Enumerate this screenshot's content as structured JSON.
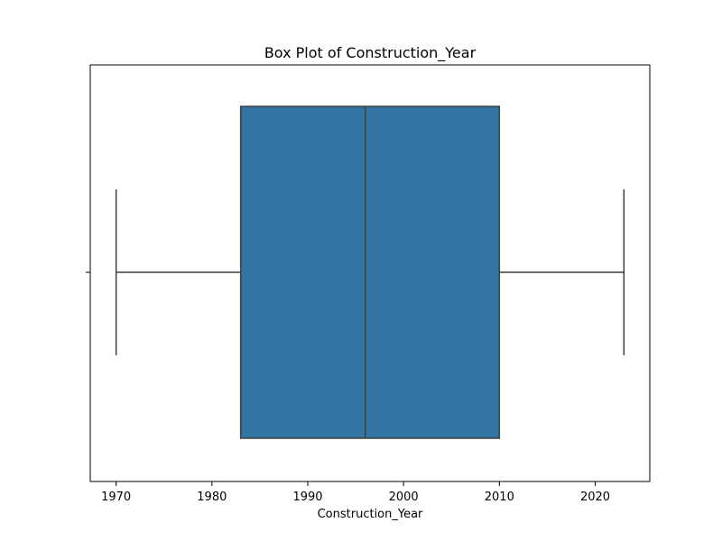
{
  "chart_data": {
    "type": "box",
    "title": "Box Plot of Construction_Year",
    "xlabel": "Construction_Year",
    "ylabel": "",
    "orientation": "horizontal",
    "xlim": [
      1967.3,
      2025.7
    ],
    "x_ticks": [
      1970,
      1980,
      1990,
      2000,
      2010,
      2020
    ],
    "box": {
      "whisker_low": 1970,
      "q1": 1983,
      "median": 1996,
      "q3": 2010,
      "whisker_high": 2023
    },
    "box_color": "#3274a1",
    "line_color": "#3f3f3f",
    "grid": false,
    "legend": "none"
  }
}
